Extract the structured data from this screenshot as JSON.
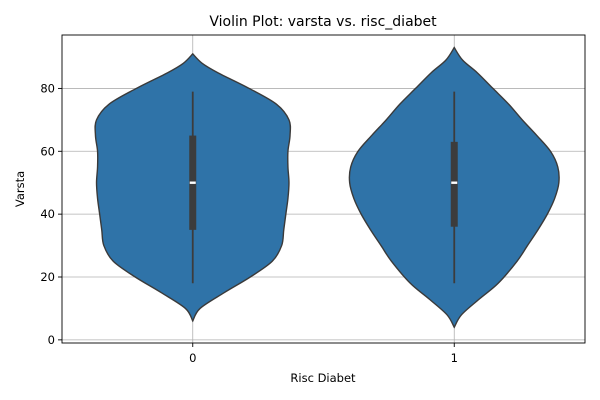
{
  "chart_data": {
    "type": "violin",
    "title": "Violin Plot: varsta vs. risc_diabet",
    "xlabel": "Risc Diabet",
    "ylabel": "Varsta",
    "categories": [
      "0",
      "1"
    ],
    "ylim": [
      -1,
      97
    ],
    "yticks": [
      0,
      20,
      40,
      60,
      80
    ],
    "grid": true,
    "color": "#2f73a8",
    "violins": [
      {
        "category": "0",
        "min": 18,
        "q1": 35,
        "median": 50,
        "q3": 65,
        "max": 79,
        "density_y": [
          6,
          10,
          15,
          20,
          25,
          30,
          35,
          40,
          45,
          50,
          55,
          60,
          65,
          70,
          75,
          80,
          85,
          88,
          91
        ],
        "density_w": [
          0,
          0.07,
          0.3,
          0.55,
          0.76,
          0.85,
          0.87,
          0.89,
          0.91,
          0.92,
          0.91,
          0.91,
          0.93,
          0.92,
          0.8,
          0.54,
          0.24,
          0.09,
          0
        ]
      },
      {
        "category": "1",
        "min": 18,
        "q1": 36,
        "median": 50,
        "q3": 63,
        "max": 79,
        "density_y": [
          4,
          8,
          13,
          18,
          25,
          30,
          35,
          40,
          45,
          50,
          55,
          60,
          65,
          70,
          75,
          80,
          85,
          89,
          93
        ],
        "density_w": [
          0,
          0.07,
          0.24,
          0.42,
          0.6,
          0.7,
          0.8,
          0.89,
          0.96,
          1.0,
          0.99,
          0.92,
          0.79,
          0.65,
          0.52,
          0.37,
          0.22,
          0.08,
          0
        ]
      }
    ]
  }
}
